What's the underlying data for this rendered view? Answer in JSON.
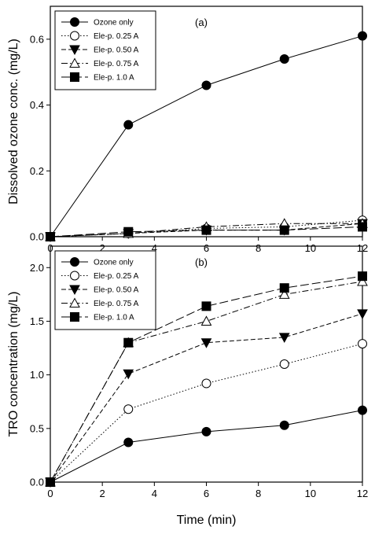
{
  "chart_data": [
    {
      "type": "line",
      "panel_label": "(a)",
      "ylabel": "Dissolved ozone conc. (mg/L)",
      "xlabel": "",
      "xlim": [
        0,
        12
      ],
      "ylim": [
        0,
        0.7
      ],
      "xticks": [
        "0",
        "2",
        "4",
        "6",
        "8",
        "10",
        "12"
      ],
      "yticks": [
        "0.0",
        "0.2",
        "0.4",
        "0.6"
      ],
      "legend_position": "top-left",
      "series": [
        {
          "name": "Ozone only",
          "marker": "filled-circle",
          "dash": "solid",
          "x": [
            0,
            3,
            6,
            9,
            12
          ],
          "y": [
            0,
            0.34,
            0.46,
            0.54,
            0.61
          ]
        },
        {
          "name": "Ele-p. 0.25 A",
          "marker": "open-circle",
          "dash": "dotted",
          "x": [
            0,
            3,
            6,
            9,
            12
          ],
          "y": [
            0,
            0.01,
            0.025,
            0.03,
            0.05
          ]
        },
        {
          "name": "Ele-p. 0.50 A",
          "marker": "filled-triangle-down",
          "dash": "dashed",
          "x": [
            0,
            3,
            6,
            9,
            12
          ],
          "y": [
            0,
            0.01,
            0.02,
            0.02,
            0.04
          ]
        },
        {
          "name": "Ele-p.  0.75 A",
          "marker": "open-triangle-up",
          "dash": "dashdot",
          "x": [
            0,
            3,
            6,
            9,
            12
          ],
          "y": [
            0,
            0.01,
            0.03,
            0.04,
            0.04
          ]
        },
        {
          "name": "Ele-p. 1.0 A",
          "marker": "filled-square",
          "dash": "longdash",
          "x": [
            0,
            3,
            6,
            9,
            12
          ],
          "y": [
            0,
            0.015,
            0.02,
            0.02,
            0.03
          ]
        }
      ]
    },
    {
      "type": "line",
      "panel_label": "(b)",
      "ylabel": "TRO concentration (mg/L)",
      "xlabel": "Time (min)",
      "xlim": [
        0,
        12
      ],
      "ylim": [
        0,
        2.2
      ],
      "xticks": [
        "0",
        "2",
        "4",
        "6",
        "8",
        "10",
        "12"
      ],
      "yticks": [
        "0.0",
        "0.5",
        "1.0",
        "1.5",
        "2.0"
      ],
      "legend_position": "top-left",
      "series": [
        {
          "name": "Ozone only",
          "marker": "filled-circle",
          "dash": "solid",
          "x": [
            0,
            3,
            6,
            9,
            12
          ],
          "y": [
            0,
            0.37,
            0.47,
            0.53,
            0.67
          ]
        },
        {
          "name": "Ele-p. 0.25 A",
          "marker": "open-circle",
          "dash": "dotted",
          "x": [
            0,
            3,
            6,
            9,
            12
          ],
          "y": [
            0,
            0.68,
            0.92,
            1.1,
            1.29
          ]
        },
        {
          "name": "Ele-p. 0.50 A",
          "marker": "filled-triangle-down",
          "dash": "dashed",
          "x": [
            0,
            3,
            6,
            9,
            12
          ],
          "y": [
            0,
            1.01,
            1.3,
            1.35,
            1.57
          ]
        },
        {
          "name": "Ele-p. 0.75 A",
          "marker": "open-triangle-up",
          "dash": "dashdot",
          "x": [
            0,
            3,
            6,
            9,
            12
          ],
          "y": [
            0,
            1.3,
            1.5,
            1.75,
            1.87
          ]
        },
        {
          "name": "Ele-p. 1.0 A",
          "marker": "filled-square",
          "dash": "longdash",
          "x": [
            0,
            3,
            6,
            9,
            12
          ],
          "y": [
            0,
            1.3,
            1.64,
            1.81,
            1.92
          ]
        }
      ]
    }
  ]
}
